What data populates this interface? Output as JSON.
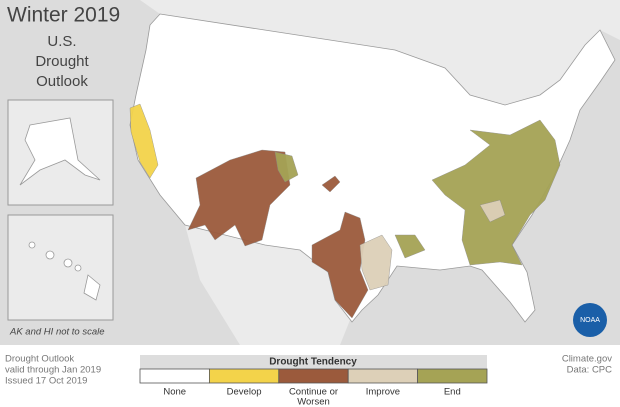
{
  "title": "Winter 2019",
  "subtitle": [
    "U.S.",
    "Drought",
    "Outlook"
  ],
  "scale_note": "AK and HI not to scale",
  "logo": "NOAA",
  "footer_left": [
    "Drought Outlook",
    "valid through Jan 2019",
    "Issued 17 Oct 2019"
  ],
  "footer_right": [
    "Climate.gov",
    "Data: CPC"
  ],
  "legend": {
    "title": "Drought Tendency",
    "items": [
      {
        "label": [
          "None"
        ],
        "color": "#ffffff"
      },
      {
        "label": [
          "Develop"
        ],
        "color": "#f3d34a"
      },
      {
        "label": [
          "Continue or",
          "Worsen"
        ],
        "color": "#9b5a3c"
      },
      {
        "label": [
          "Improve"
        ],
        "color": "#ddd0b8"
      },
      {
        "label": [
          "End"
        ],
        "color": "#a5a355"
      }
    ]
  }
}
